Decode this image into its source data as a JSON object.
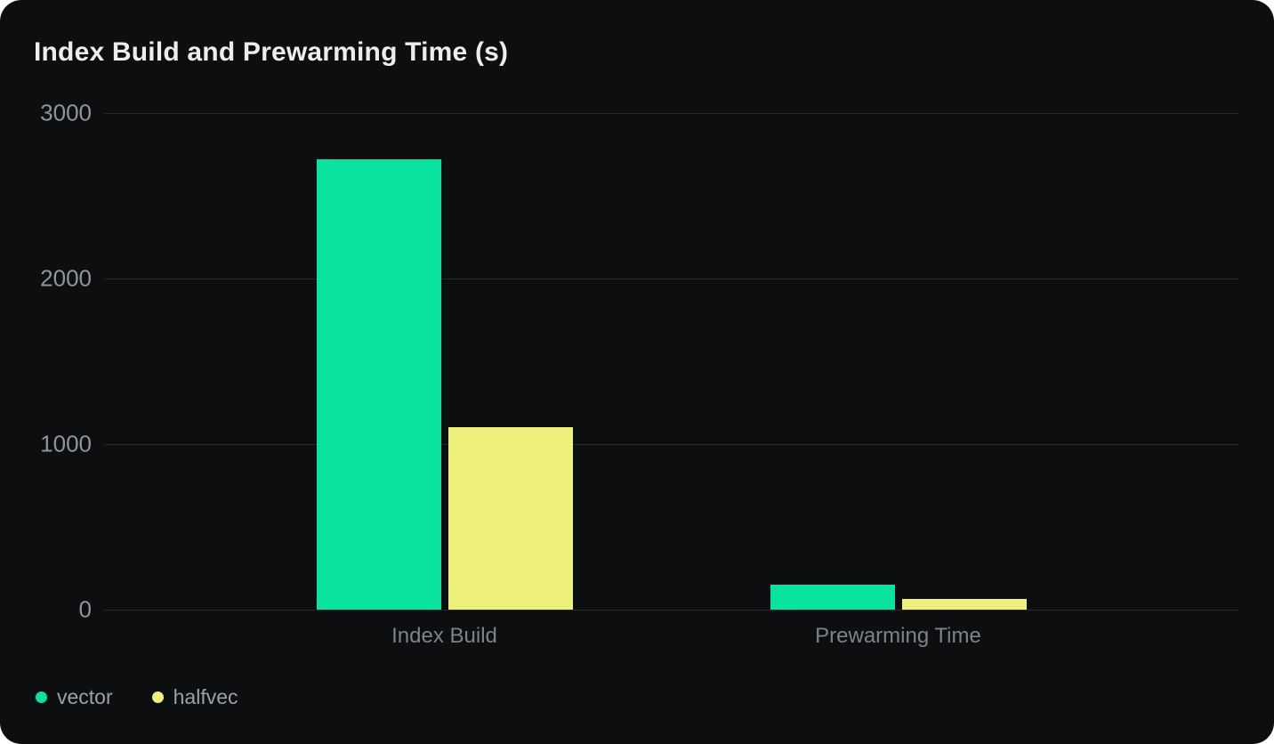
{
  "chart_data": {
    "type": "bar",
    "title": "Index Build and Prewarming Time (s)",
    "categories": [
      "Index Build",
      "Prewarming Time"
    ],
    "series": [
      {
        "name": "vector",
        "color": "#0ae2a0",
        "values": [
          2720,
          150
        ]
      },
      {
        "name": "halfvec",
        "color": "#edf07b",
        "values": [
          1100,
          65
        ]
      }
    ],
    "xlabel": "",
    "ylabel": "",
    "ylim": [
      0,
      3000
    ],
    "yticks": [
      3000,
      2000,
      1000,
      0
    ],
    "grid": true,
    "legend_position": "bottom-left"
  },
  "theme": {
    "card_background": "#0d0e0f",
    "page_background": "#ffffff",
    "gridline_color": "#27292c",
    "tick_label_color": "#8f959b",
    "category_label_color": "#7d828b",
    "legend_text_color": "#9ba1a9",
    "title_color": "#ededee"
  }
}
